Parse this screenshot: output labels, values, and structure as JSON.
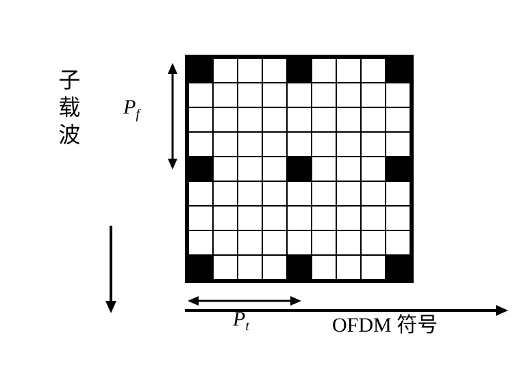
{
  "diagram": {
    "type": "grid-diagram",
    "y_axis_label": "子载波",
    "x_axis_label": "OFDM 符号",
    "pf_label_base": "P",
    "pf_label_sub": "f",
    "pt_label_base": "P",
    "pt_label_sub": "t",
    "grid": {
      "rows": 9,
      "cols": 9,
      "cell_size": 36,
      "border_color": "#000000",
      "fill_color": "#ffffff",
      "pilot_color": "#000000",
      "pilot_positions": [
        [
          0,
          0
        ],
        [
          0,
          4
        ],
        [
          0,
          8
        ],
        [
          4,
          0
        ],
        [
          4,
          4
        ],
        [
          4,
          8
        ],
        [
          8,
          0
        ],
        [
          8,
          4
        ],
        [
          8,
          8
        ]
      ]
    },
    "pf_arrow": {
      "length": 145,
      "stroke": "#000000",
      "stroke_width": 3
    },
    "pt_arrow": {
      "length": 160,
      "stroke": "#000000",
      "stroke_width": 3
    },
    "y_main_arrow": {
      "length": 120,
      "stroke": "#000000",
      "stroke_width": 4
    },
    "x_main_arrow": {
      "length": 460,
      "stroke": "#000000",
      "stroke_width": 4
    },
    "font_size_labels": 30,
    "font_size_axis": 32,
    "background_color": "#ffffff"
  }
}
